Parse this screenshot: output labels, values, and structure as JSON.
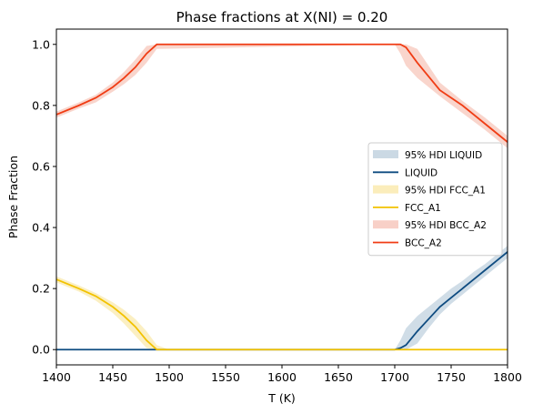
{
  "chart_data": {
    "type": "line",
    "title": "Phase fractions at X(NI) = 0.20",
    "xlabel": "T (K)",
    "ylabel": "Phase Fraction",
    "xlim": [
      1400,
      1800
    ],
    "ylim": [
      -0.05,
      1.05
    ],
    "xticks": [
      "1400",
      "1450",
      "1500",
      "1550",
      "1600",
      "1650",
      "1700",
      "1750",
      "1800"
    ],
    "yticks": [
      "0.0",
      "0.2",
      "0.4",
      "0.6",
      "0.8",
      "1.0"
    ],
    "grid": false,
    "legend_position": "center-right",
    "series": [
      {
        "name": "LIQUID",
        "hdi_name": "95% HDI LIQUID",
        "color": "#0f4c81",
        "hdi_color": "#cbd9e4",
        "x": [
          1400,
          1700,
          1705,
          1710,
          1720,
          1730,
          1740,
          1750,
          1760,
          1770,
          1780,
          1790,
          1800
        ],
        "y": [
          0.0,
          0.0,
          0.005,
          0.015,
          0.06,
          0.1,
          0.14,
          0.17,
          0.2,
          0.23,
          0.26,
          0.29,
          0.32
        ],
        "lower": [
          0.0,
          0.0,
          0.0,
          0.0,
          0.02,
          0.07,
          0.115,
          0.15,
          0.18,
          0.21,
          0.24,
          0.27,
          0.3
        ],
        "upper": [
          0.0,
          0.0,
          0.03,
          0.07,
          0.11,
          0.14,
          0.17,
          0.2,
          0.225,
          0.255,
          0.28,
          0.31,
          0.34
        ]
      },
      {
        "name": "FCC_A1",
        "hdi_name": "95% HDI FCC_A1",
        "color": "#f2c200",
        "hdi_color": "#fbedbb",
        "x": [
          1400,
          1420,
          1435,
          1450,
          1460,
          1470,
          1480,
          1489,
          1500,
          1800
        ],
        "y": [
          0.23,
          0.2,
          0.175,
          0.14,
          0.11,
          0.075,
          0.03,
          0.0,
          0.0,
          0.0
        ],
        "lower": [
          0.22,
          0.19,
          0.16,
          0.12,
          0.085,
          0.045,
          0.005,
          0.0,
          0.0,
          0.0
        ],
        "upper": [
          0.24,
          0.21,
          0.185,
          0.155,
          0.13,
          0.1,
          0.06,
          0.015,
          0.0,
          0.0
        ]
      },
      {
        "name": "BCC_A2",
        "hdi_name": "95% HDI BCC_A2",
        "color": "#f03c14",
        "hdi_color": "#f8d0c7",
        "x": [
          1400,
          1420,
          1435,
          1450,
          1460,
          1470,
          1480,
          1489,
          1700,
          1705,
          1710,
          1720,
          1740,
          1760,
          1780,
          1800
        ],
        "y": [
          0.77,
          0.8,
          0.825,
          0.86,
          0.89,
          0.925,
          0.97,
          1.0,
          1.0,
          1.0,
          0.99,
          0.94,
          0.85,
          0.8,
          0.74,
          0.68
        ],
        "lower": [
          0.76,
          0.79,
          0.81,
          0.845,
          0.87,
          0.9,
          0.94,
          0.985,
          1.0,
          0.97,
          0.93,
          0.89,
          0.83,
          0.775,
          0.72,
          0.66
        ],
        "upper": [
          0.78,
          0.81,
          0.835,
          0.875,
          0.91,
          0.95,
          0.995,
          1.0,
          1.0,
          1.0,
          1.0,
          0.985,
          0.875,
          0.815,
          0.76,
          0.7
        ]
      }
    ]
  }
}
